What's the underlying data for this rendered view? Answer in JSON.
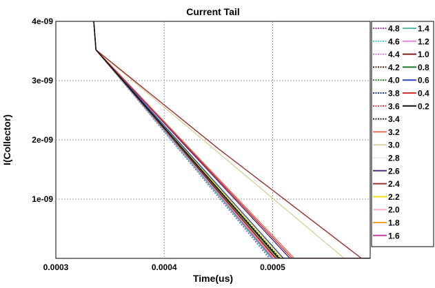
{
  "chart_data": {
    "type": "line",
    "title": "Current Tail",
    "xlabel": "Time(us)",
    "ylabel": "I(Collector)",
    "xlim": [
      0.0003,
      0.00059
    ],
    "ylim": [
      0,
      4e-09
    ],
    "x_ticks": [
      0.0003,
      0.0004,
      0.0005
    ],
    "x_tick_labels": [
      "0.0003",
      "0.0004",
      "0.0005"
    ],
    "y_ticks": [
      1e-09,
      2e-09,
      3e-09,
      4e-09
    ],
    "y_tick_labels": [
      "1e-09",
      "2e-09",
      "3e-09",
      "4e-09"
    ],
    "grid": true,
    "legend_placement": "right",
    "legend_columns": [
      [
        "4.8",
        "4.6",
        "4.4",
        "4.2",
        "4.0",
        "3.8",
        "3.6",
        "3.4",
        "3.2",
        "3.0",
        "2.8",
        "2.6",
        "2.4",
        "2.2",
        "2.0",
        "1.8",
        "1.6"
      ],
      [
        "1.4",
        "1.2",
        "1.0",
        "0.8",
        "0.6",
        "0.4",
        "0.2"
      ]
    ],
    "series": [
      {
        "name": "4.8",
        "color": "#9e3aa6",
        "dashed": true,
        "x": [
          0.000335,
          0.000335,
          0.000337,
          0.000497,
          0.00059
        ],
        "y": [
          4.2e-09,
          4e-09,
          3.52e-09,
          0,
          0
        ]
      },
      {
        "name": "4.6",
        "color": "#40c8b8",
        "dashed": true,
        "x": [
          0.000335,
          0.000335,
          0.000337,
          0.000498,
          0.00059
        ],
        "y": [
          4.2e-09,
          4e-09,
          3.52e-09,
          0,
          0
        ]
      },
      {
        "name": "4.4",
        "color": "#d07ad8",
        "dashed": true,
        "x": [
          0.000335,
          0.000335,
          0.000337,
          0.000499,
          0.00059
        ],
        "y": [
          4.2e-09,
          4e-09,
          3.52e-09,
          0,
          0
        ]
      },
      {
        "name": "4.2",
        "color": "#4a1a10",
        "dashed": true,
        "x": [
          0.000335,
          0.000335,
          0.000337,
          0.0005,
          0.00059
        ],
        "y": [
          4.2e-09,
          4e-09,
          3.52e-09,
          0,
          0
        ]
      },
      {
        "name": "4.0",
        "color": "#1e7a1e",
        "dashed": true,
        "x": [
          0.000335,
          0.000335,
          0.000337,
          0.000501,
          0.00059
        ],
        "y": [
          4.2e-09,
          4e-09,
          3.52e-09,
          0,
          0
        ]
      },
      {
        "name": "3.8",
        "color": "#1a3a9a",
        "dashed": true,
        "x": [
          0.000335,
          0.000335,
          0.000337,
          0.000503,
          0.00059
        ],
        "y": [
          4.2e-09,
          4e-09,
          3.52e-09,
          0,
          0
        ]
      },
      {
        "name": "3.6",
        "color": "#d8343c",
        "dashed": true,
        "x": [
          0.000335,
          0.000335,
          0.000337,
          0.000505,
          0.00059
        ],
        "y": [
          4.2e-09,
          4e-09,
          3.52e-09,
          0,
          0
        ]
      },
      {
        "name": "3.4",
        "color": "#222222",
        "dashed": true,
        "x": [
          0.000335,
          0.000335,
          0.000337,
          0.000507,
          0.00059
        ],
        "y": [
          4.2e-09,
          4e-09,
          3.52e-09,
          0,
          0
        ]
      },
      {
        "name": "3.2",
        "color": "#e8705a",
        "dashed": false,
        "x": [
          0.000335,
          0.000335,
          0.000337,
          0.00052,
          0.00059
        ],
        "y": [
          4.2e-09,
          4e-09,
          3.52e-09,
          0,
          0
        ]
      },
      {
        "name": "3.0",
        "color": "#d8d0a0",
        "dashed": false,
        "x": [
          0.000335,
          0.000335,
          0.000337,
          0.000566,
          0.00059
        ],
        "y": [
          4.2e-09,
          4e-09,
          3.52e-09,
          0,
          0
        ]
      },
      {
        "name": "2.8",
        "color": "#eeeeee",
        "dashed": false,
        "x": [
          0.000335,
          0.000335,
          0.000337,
          0.000512,
          0.00059
        ],
        "y": [
          4.2e-09,
          4e-09,
          3.52e-09,
          0,
          0
        ]
      },
      {
        "name": "2.6",
        "color": "#4a2a7a",
        "dashed": false,
        "x": [
          0.000335,
          0.000335,
          0.000337,
          0.000516,
          0.00059
        ],
        "y": [
          4.2e-09,
          4e-09,
          3.52e-09,
          0,
          0
        ]
      },
      {
        "name": "2.4",
        "color": "#9a3030",
        "dashed": false,
        "x": [
          0.000335,
          0.000335,
          0.000337,
          0.00045,
          0.000582,
          0.00059
        ],
        "y": [
          4.2e-09,
          4e-09,
          3.52e-09,
          1.85e-09,
          0,
          0
        ]
      },
      {
        "name": "2.2",
        "color": "#f0e020",
        "dashed": false,
        "x": [
          0.000335,
          0.000335,
          0.000337,
          0.000508,
          0.00059
        ],
        "y": [
          4.2e-09,
          4e-09,
          3.52e-09,
          0,
          0
        ]
      },
      {
        "name": "2.0",
        "color": "#f4b8c8",
        "dashed": false,
        "x": [
          0.000335,
          0.000335,
          0.000337,
          0.000504,
          0.00059
        ],
        "y": [
          4.2e-09,
          4e-09,
          3.52e-09,
          0,
          0
        ]
      },
      {
        "name": "1.8",
        "color": "#f0a020",
        "dashed": false,
        "x": [
          0.000335,
          0.000335,
          0.000337,
          0.000502,
          0.00059
        ],
        "y": [
          4.2e-09,
          4e-09,
          3.52e-09,
          0,
          0
        ]
      },
      {
        "name": "1.6",
        "color": "#c040a0",
        "dashed": false,
        "x": [
          0.000335,
          0.000335,
          0.000337,
          0.0005,
          0.00059
        ],
        "y": [
          4.2e-09,
          4e-09,
          3.52e-09,
          0,
          0
        ]
      },
      {
        "name": "1.4",
        "color": "#5ab8a8",
        "dashed": false,
        "x": [
          0.000335,
          0.000335,
          0.000337,
          0.000499,
          0.00059
        ],
        "y": [
          4.2e-09,
          4e-09,
          3.52e-09,
          0,
          0
        ]
      },
      {
        "name": "1.2",
        "color": "#e888d8",
        "dashed": false,
        "x": [
          0.000335,
          0.000335,
          0.000337,
          0.000501,
          0.00059
        ],
        "y": [
          4.2e-09,
          4e-09,
          3.52e-09,
          0,
          0
        ]
      },
      {
        "name": "1.0",
        "color": "#7a1a1a",
        "dashed": false,
        "x": [
          0.000335,
          0.000335,
          0.000337,
          0.000503,
          0.00059
        ],
        "y": [
          4.2e-09,
          4e-09,
          3.52e-09,
          0,
          0
        ]
      },
      {
        "name": "0.8",
        "color": "#1a7a2a",
        "dashed": false,
        "x": [
          0.000335,
          0.000335,
          0.000337,
          0.000505,
          0.00059
        ],
        "y": [
          4.2e-09,
          4e-09,
          3.52e-09,
          0,
          0
        ]
      },
      {
        "name": "0.6",
        "color": "#2a44b8",
        "dashed": false,
        "x": [
          0.000335,
          0.000335,
          0.000337,
          0.00051,
          0.00059
        ],
        "y": [
          4.2e-09,
          4e-09,
          3.52e-09,
          0,
          0
        ]
      },
      {
        "name": "0.4",
        "color": "#d83030",
        "dashed": false,
        "x": [
          0.000335,
          0.000335,
          0.000337,
          0.000518,
          0.00059
        ],
        "y": [
          4.2e-09,
          4e-09,
          3.52e-09,
          0,
          0
        ]
      },
      {
        "name": "0.2",
        "color": "#111111",
        "dashed": false,
        "x": [
          0.000335,
          0.000335,
          0.000337,
          0.000506,
          0.00059
        ],
        "y": [
          4.2e-09,
          4e-09,
          3.52e-09,
          0,
          0
        ]
      }
    ]
  }
}
